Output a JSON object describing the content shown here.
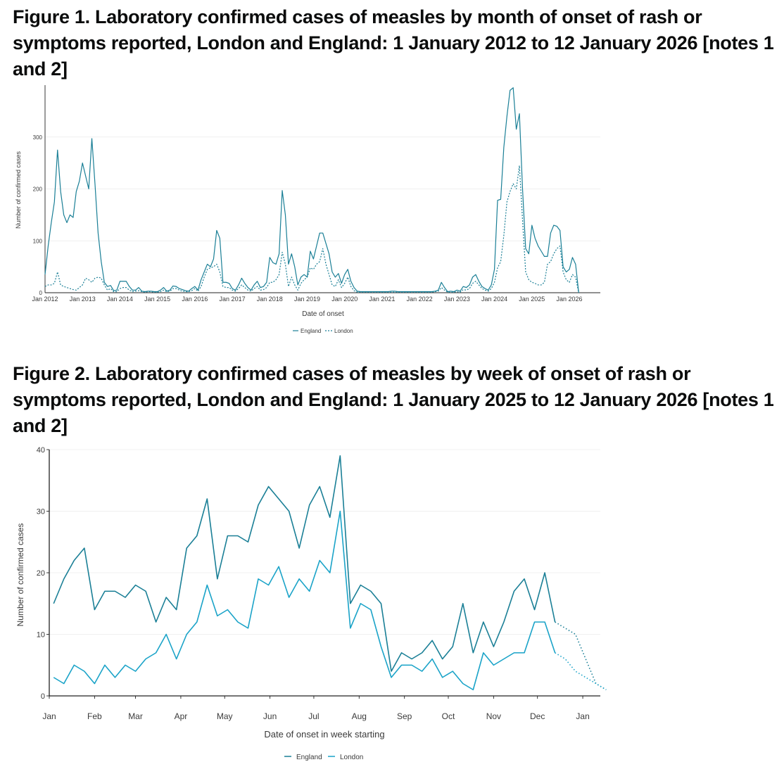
{
  "figure1": {
    "title": "Figure 1. Laboratory confirmed cases of measles by month of onset of rash or symptoms reported, London and England: 1 January 2012 to 12 January 2026 [notes 1 and 2]"
  },
  "figure2": {
    "title": "Figure 2. Laboratory confirmed cases of measles by week of onset of rash or symptoms reported, London and England: 1 January 2025 to 12 January 2026 [notes 1 and 2]"
  },
  "colors": {
    "england": "#1a7f96",
    "london": "#1aa3c8",
    "grid": "#ebebeb",
    "axis": "#222222"
  },
  "chart_data": [
    {
      "type": "line",
      "title": "Figure 1. Laboratory confirmed cases of measles by month of onset of rash or symptoms reported, London and England: 1 January 2012 to 12 January 2026 [notes 1 and 2]",
      "xlabel": "Date of onset",
      "ylabel": "Number of confirmed cases",
      "ylim": [
        0,
        400
      ],
      "yticks": [
        0,
        100,
        200,
        300
      ],
      "x_start": "Jan 2012",
      "x_end_index": 168,
      "xticks": [
        {
          "i": 0,
          "label": "Jan 2012"
        },
        {
          "i": 12,
          "label": "Jan 2013"
        },
        {
          "i": 24,
          "label": "Jan 2014"
        },
        {
          "i": 36,
          "label": "Jan 2015"
        },
        {
          "i": 48,
          "label": "Jan 2016"
        },
        {
          "i": 60,
          "label": "Jan 2017"
        },
        {
          "i": 72,
          "label": "Jan 2018"
        },
        {
          "i": 84,
          "label": "Jan 2019"
        },
        {
          "i": 96,
          "label": "Jan 2020"
        },
        {
          "i": 108,
          "label": "Jan 2021"
        },
        {
          "i": 120,
          "label": "Jan 2022"
        },
        {
          "i": 132,
          "label": "Jan 2023"
        },
        {
          "i": 144,
          "label": "Jan 2024"
        },
        {
          "i": 156,
          "label": "Jan 2025"
        },
        {
          "i": 168,
          "label": "Jan 2026"
        }
      ],
      "legend": [
        "England",
        "London"
      ],
      "series": [
        {
          "name": "England",
          "style": "solid",
          "values": [
            35,
            90,
            135,
            175,
            275,
            195,
            150,
            135,
            150,
            145,
            195,
            215,
            250,
            225,
            200,
            297,
            210,
            115,
            60,
            20,
            12,
            14,
            4,
            5,
            22,
            22,
            22,
            12,
            5,
            5,
            10,
            3,
            2,
            3,
            3,
            2,
            2,
            5,
            10,
            3,
            5,
            13,
            12,
            8,
            6,
            4,
            3,
            8,
            12,
            5,
            25,
            40,
            55,
            50,
            65,
            120,
            105,
            20,
            20,
            18,
            8,
            5,
            15,
            28,
            18,
            10,
            5,
            15,
            22,
            10,
            12,
            20,
            68,
            58,
            55,
            75,
            197,
            150,
            55,
            75,
            50,
            15,
            30,
            35,
            30,
            80,
            65,
            90,
            115,
            115,
            95,
            75,
            40,
            30,
            37,
            18,
            35,
            45,
            22,
            10,
            3,
            2,
            2,
            2,
            2,
            2,
            2,
            2,
            2,
            2,
            2,
            3,
            3,
            2,
            2,
            2,
            2,
            2,
            2,
            2,
            2,
            2,
            2,
            2,
            2,
            3,
            5,
            20,
            10,
            2,
            3,
            2,
            5,
            3,
            12,
            10,
            15,
            30,
            35,
            22,
            12,
            8,
            5,
            15,
            45,
            178,
            180,
            280,
            340,
            390,
            395,
            315,
            345,
            200,
            85,
            75,
            130,
            105,
            90,
            80,
            70,
            70,
            115,
            130,
            128,
            120,
            50,
            40,
            45,
            68,
            55,
            0
          ]
        },
        {
          "name": "London",
          "style": "dashed",
          "values": [
            12,
            15,
            15,
            18,
            40,
            15,
            12,
            10,
            8,
            6,
            5,
            10,
            15,
            28,
            25,
            20,
            28,
            30,
            28,
            15,
            5,
            8,
            2,
            2,
            8,
            10,
            10,
            5,
            2,
            3,
            4,
            2,
            1,
            2,
            2,
            1,
            1,
            2,
            5,
            2,
            3,
            8,
            8,
            5,
            3,
            2,
            2,
            4,
            8,
            3,
            12,
            30,
            45,
            48,
            50,
            55,
            40,
            12,
            10,
            10,
            5,
            3,
            8,
            15,
            10,
            5,
            3,
            8,
            12,
            5,
            6,
            10,
            20,
            20,
            25,
            35,
            78,
            55,
            12,
            30,
            15,
            5,
            18,
            25,
            30,
            48,
            45,
            55,
            60,
            85,
            55,
            35,
            15,
            12,
            25,
            10,
            18,
            30,
            12,
            4,
            1,
            1,
            1,
            1,
            1,
            1,
            1,
            1,
            1,
            1,
            1,
            1,
            1,
            1,
            1,
            1,
            1,
            1,
            1,
            1,
            1,
            1,
            1,
            1,
            1,
            2,
            3,
            10,
            5,
            1,
            1,
            1,
            2,
            1,
            6,
            5,
            8,
            18,
            22,
            15,
            8,
            5,
            3,
            8,
            20,
            48,
            60,
            110,
            175,
            195,
            210,
            200,
            245,
            140,
            40,
            25,
            20,
            18,
            15,
            15,
            20,
            55,
            60,
            75,
            85,
            90,
            40,
            25,
            20,
            35,
            30,
            0
          ]
        }
      ]
    },
    {
      "type": "line",
      "title": "Figure 2. Laboratory confirmed cases of measles by week of onset of rash or symptoms reported, London and England: 1 January 2025 to 12 January 2026 [notes 1 and 2]",
      "xlabel": "Date of onset in week starting",
      "ylabel": "Number of confirmed cases",
      "ylim": [
        0,
        40
      ],
      "yticks": [
        0,
        10,
        20,
        30,
        40
      ],
      "x_range_days": [
        0,
        377
      ],
      "week_start_day": 3,
      "xticks": [
        {
          "day": 0,
          "label": "Jan"
        },
        {
          "day": 31,
          "label": "Feb"
        },
        {
          "day": 59,
          "label": "Mar"
        },
        {
          "day": 90,
          "label": "Apr"
        },
        {
          "day": 120,
          "label": "May"
        },
        {
          "day": 151,
          "label": "Jun"
        },
        {
          "day": 181,
          "label": "Jul"
        },
        {
          "day": 212,
          "label": "Aug"
        },
        {
          "day": 243,
          "label": "Sep"
        },
        {
          "day": 273,
          "label": "Oct"
        },
        {
          "day": 304,
          "label": "Nov"
        },
        {
          "day": 334,
          "label": "Dec"
        },
        {
          "day": 365,
          "label": "Jan"
        }
      ],
      "legend": [
        "England",
        "London"
      ],
      "provisional_from_week": 49,
      "series": [
        {
          "name": "England",
          "values": [
            15,
            19,
            22,
            24,
            14,
            17,
            17,
            16,
            18,
            17,
            12,
            16,
            14,
            24,
            26,
            32,
            19,
            26,
            26,
            25,
            31,
            34,
            32,
            30,
            24,
            31,
            34,
            29,
            39,
            15,
            18,
            17,
            15,
            4,
            7,
            6,
            7,
            9,
            6,
            8,
            15,
            7,
            12,
            8,
            12,
            17,
            19,
            14,
            20,
            12,
            11,
            10,
            6,
            2,
            1
          ]
        },
        {
          "name": "London",
          "values": [
            3,
            2,
            5,
            4,
            2,
            5,
            3,
            5,
            4,
            6,
            7,
            10,
            6,
            10,
            12,
            18,
            13,
            14,
            12,
            11,
            19,
            18,
            21,
            16,
            19,
            17,
            22,
            20,
            30,
            11,
            15,
            14,
            8,
            3,
            5,
            5,
            4,
            6,
            3,
            4,
            2,
            1,
            7,
            5,
            6,
            7,
            7,
            12,
            12,
            7,
            6,
            4,
            3,
            2,
            1
          ]
        }
      ]
    }
  ]
}
